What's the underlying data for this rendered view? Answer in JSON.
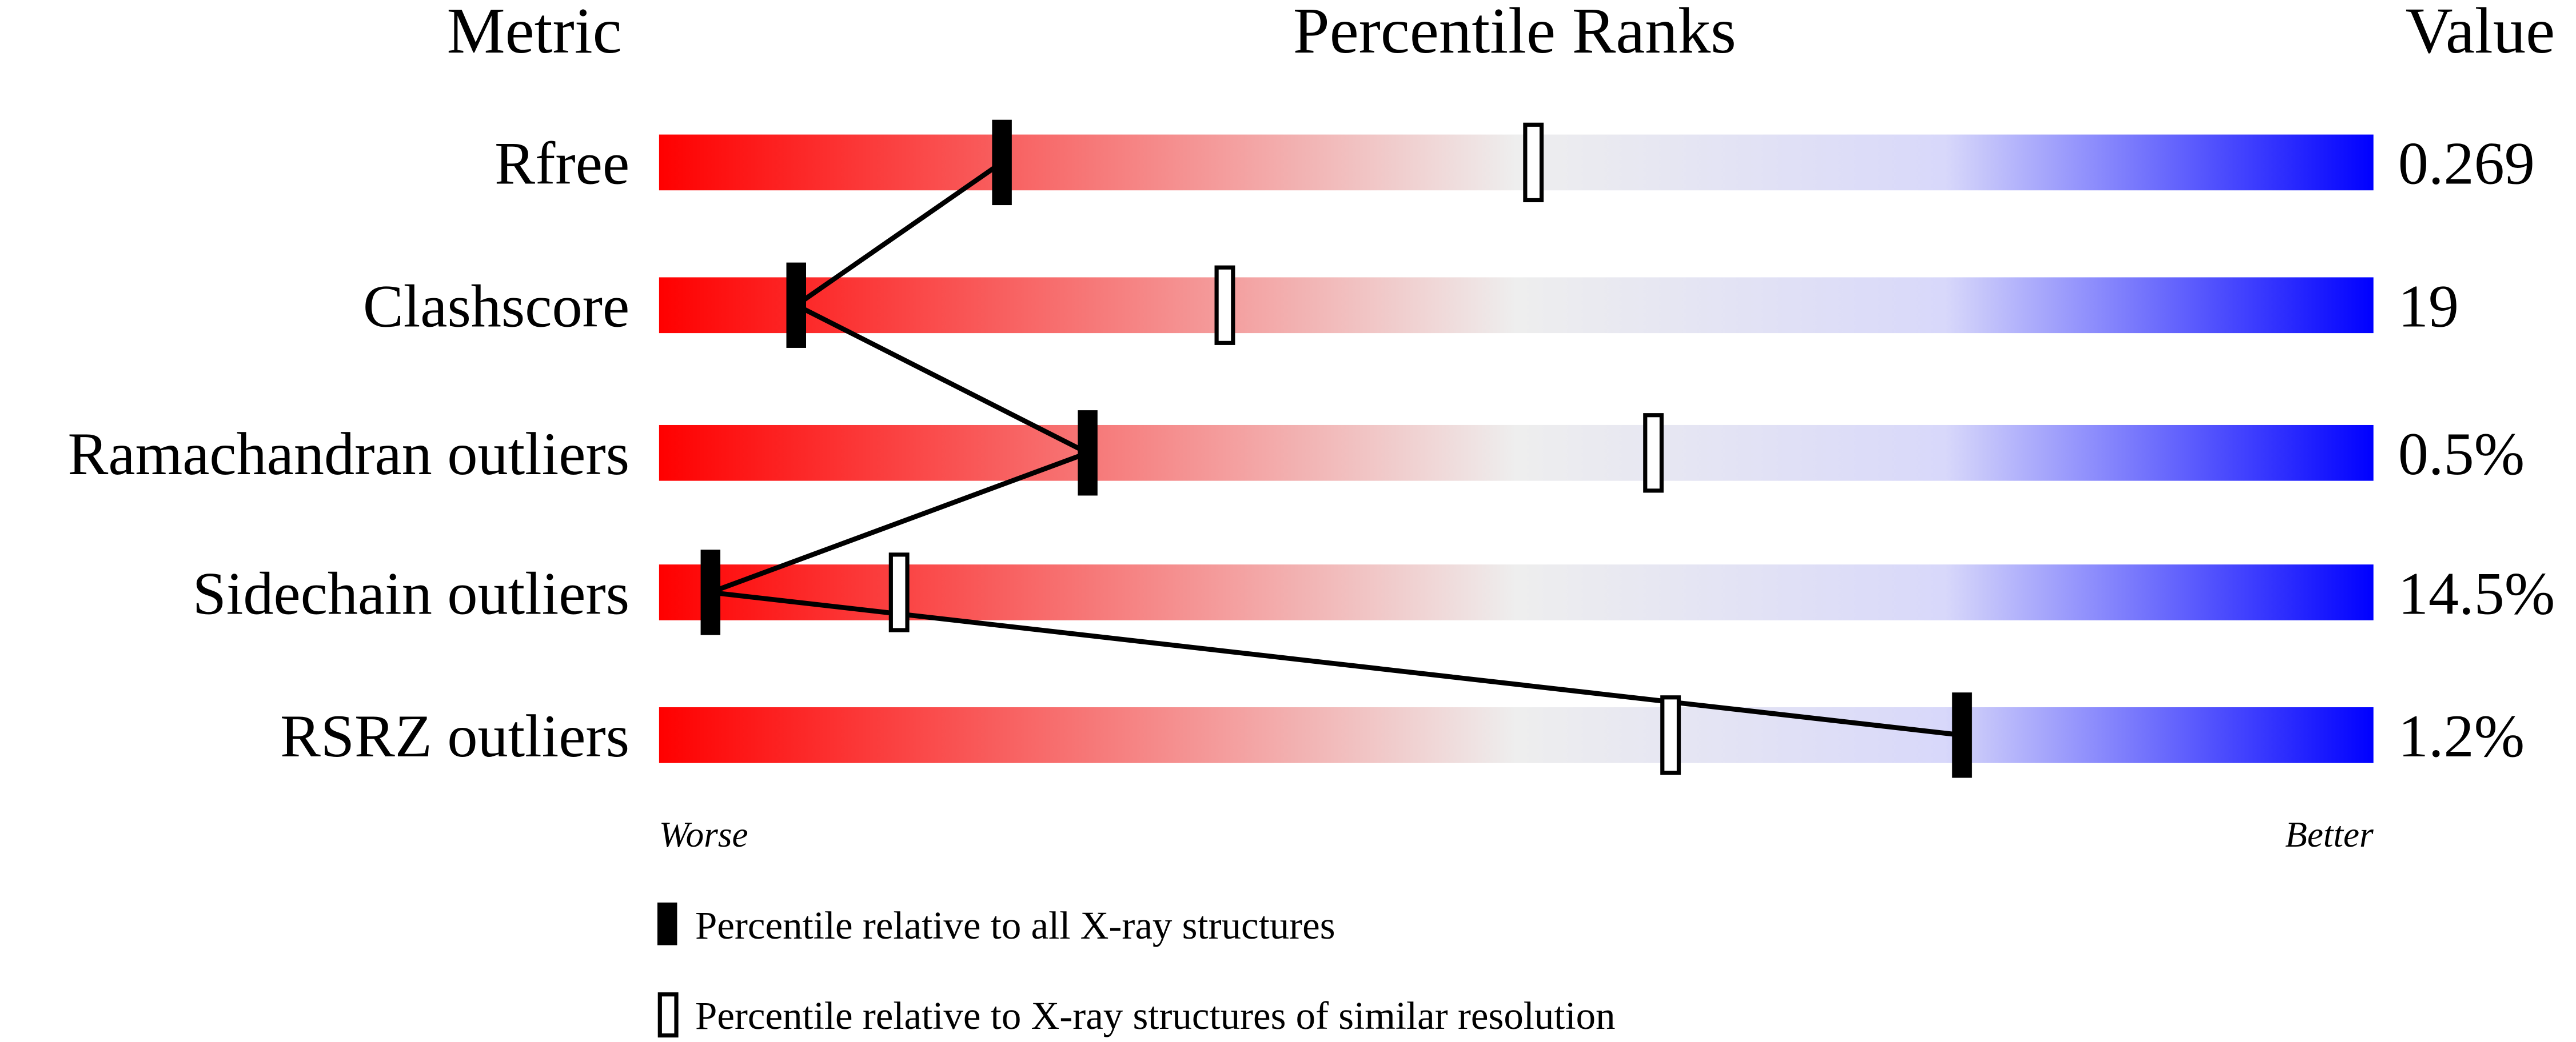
{
  "chart_data": {
    "type": "percentile-slider",
    "headers": {
      "metric": "Metric",
      "ranks": "Percentile Ranks",
      "value": "Value"
    },
    "xlim": [
      0,
      100
    ],
    "axis_labels": {
      "left": "Worse",
      "right": "Better"
    },
    "gradient_colors": [
      "#ff0000",
      "#eeeeee",
      "#d8d8fa",
      "#0000ff"
    ],
    "rows": [
      {
        "metric": "Rfree",
        "value": "0.269",
        "percentile_all": 20,
        "percentile_similar": 51
      },
      {
        "metric": "Clashscore",
        "value": "19",
        "percentile_all": 8,
        "percentile_similar": 33
      },
      {
        "metric": "Ramachandran outliers",
        "value": "0.5%",
        "percentile_all": 25,
        "percentile_similar": 58
      },
      {
        "metric": "Sidechain outliers",
        "value": "14.5%",
        "percentile_all": 3,
        "percentile_similar": 14
      },
      {
        "metric": "RSRZ outliers",
        "value": "1.2%",
        "percentile_all": 76,
        "percentile_similar": 59
      }
    ],
    "legend": [
      {
        "marker": "filled",
        "label": "Percentile relative to all X-ray structures"
      },
      {
        "marker": "open",
        "label": "Percentile relative to X-ray structures of similar resolution"
      }
    ]
  }
}
